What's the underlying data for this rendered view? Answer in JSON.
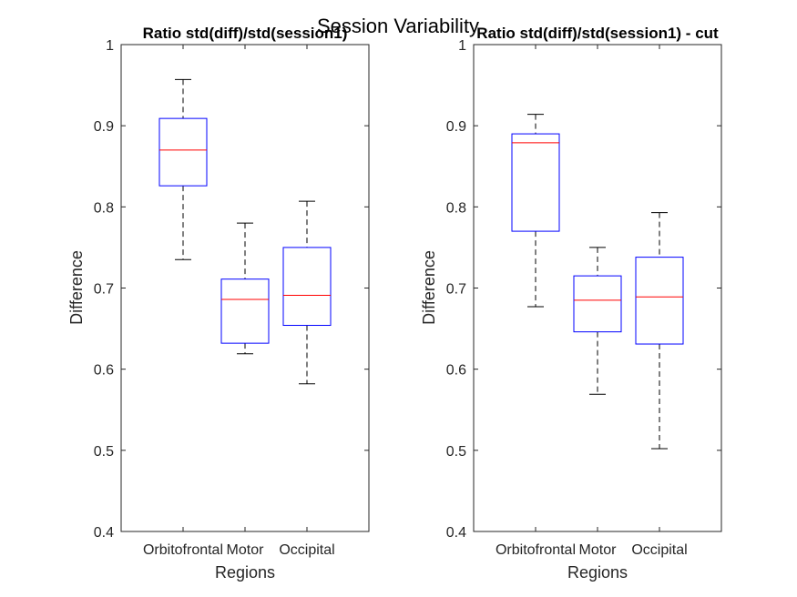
{
  "figure": {
    "suptitle": "Session Variability"
  },
  "chart_data": [
    {
      "type": "boxplot",
      "title": "Ratio std(diff)/std(session1)",
      "xlabel": "Regions",
      "ylabel": "Difference",
      "ylim": [
        0.4,
        1.0
      ],
      "yticks": [
        "0.4",
        "0.5",
        "0.6",
        "0.7",
        "0.8",
        "0.9",
        "1"
      ],
      "categories": [
        "Orbitofrontal",
        "Motor",
        "Occipital"
      ],
      "boxes": [
        {
          "whisker_low": 0.735,
          "q1": 0.826,
          "median": 0.87,
          "q3": 0.909,
          "whisker_high": 0.957
        },
        {
          "whisker_low": 0.619,
          "q1": 0.632,
          "median": 0.686,
          "q3": 0.711,
          "whisker_high": 0.78
        },
        {
          "whisker_low": 0.582,
          "q1": 0.654,
          "median": 0.691,
          "q3": 0.75,
          "whisker_high": 0.807
        }
      ],
      "colors": {
        "box": "#0000ff",
        "median": "#ff0000",
        "whisker": "#000000"
      }
    },
    {
      "type": "boxplot",
      "title": "Ratio std(diff)/std(session1) - cut",
      "xlabel": "Regions",
      "ylabel": "Difference",
      "ylim": [
        0.4,
        1.0
      ],
      "yticks": [
        "0.4",
        "0.5",
        "0.6",
        "0.7",
        "0.8",
        "0.9",
        "1"
      ],
      "categories": [
        "Orbitofrontal",
        "Motor",
        "Occipital"
      ],
      "boxes": [
        {
          "whisker_low": 0.677,
          "q1": 0.77,
          "median": 0.879,
          "q3": 0.89,
          "whisker_high": 0.914
        },
        {
          "whisker_low": 0.569,
          "q1": 0.646,
          "median": 0.685,
          "q3": 0.715,
          "whisker_high": 0.75
        },
        {
          "whisker_low": 0.502,
          "q1": 0.631,
          "median": 0.689,
          "q3": 0.738,
          "whisker_high": 0.793
        }
      ],
      "colors": {
        "box": "#0000ff",
        "median": "#ff0000",
        "whisker": "#000000"
      }
    }
  ]
}
